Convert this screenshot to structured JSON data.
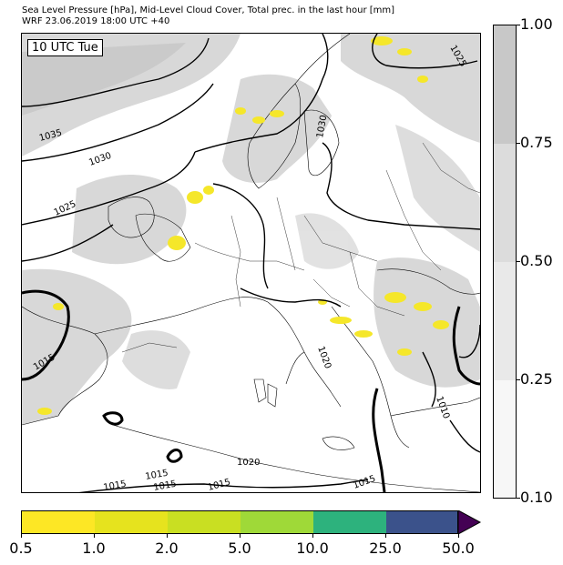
{
  "header": {
    "line1": "Sea Level Pressure [hPa], Mid-Level Cloud Cover, Total prec. in the last hour [mm]",
    "line2": "WRF 23.06.2019 18:00 UTC +40"
  },
  "time_label": "10 UTC Tue",
  "isobar_labels": [
    "1035",
    "1030",
    "1025",
    "1030",
    "1025",
    "1015",
    "1020",
    "1020",
    "1015",
    "1015",
    "1015",
    "1015",
    "1015",
    "1010"
  ],
  "cloud_colorbar": {
    "ticks": [
      "0.10",
      "0.25",
      "0.50",
      "0.75",
      "1.00"
    ],
    "colors": [
      "#f7f7f7",
      "#e9e9e9",
      "#dcdcdc",
      "#c8c8c8"
    ]
  },
  "precip_colorbar": {
    "ticks": [
      "0.5",
      "1.0",
      "2.0",
      "5.0",
      "10.0",
      "25.0",
      "50.0"
    ],
    "colors": [
      "#fde725",
      "#e6e31e",
      "#c9df22",
      "#9fd938",
      "#2db27d",
      "#3b528b",
      "#440154"
    ]
  }
}
